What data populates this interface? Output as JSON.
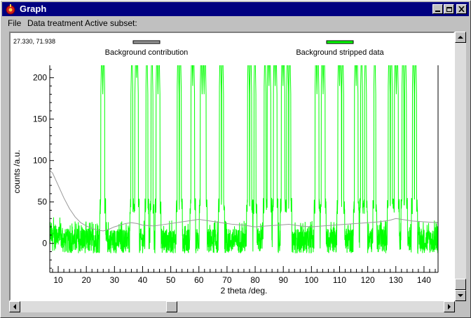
{
  "window": {
    "title": "Graph",
    "title_bar_color": "#000080"
  },
  "menu": {
    "items": [
      "File",
      "Data treatment",
      "Active subset:"
    ]
  },
  "status": {
    "cursor_readout": "27.330, 71.938"
  },
  "colors": {
    "background_series": "#999999",
    "data_series": "#00ff00",
    "axis": "#000000"
  },
  "icons": [
    "app-icon",
    "minimize-icon",
    "maximize-icon",
    "close-icon",
    "arrow-up-icon",
    "arrow-down-icon",
    "arrow-left-icon",
    "arrow-right-icon"
  ],
  "chart_data": {
    "type": "line",
    "xlabel": "2 theta /deg.",
    "ylabel": "counts /a.u.",
    "xlim": [
      7,
      145
    ],
    "ylim": [
      -35,
      215
    ],
    "x_ticks": [
      10,
      20,
      30,
      40,
      50,
      60,
      70,
      80,
      90,
      100,
      110,
      120,
      130,
      140
    ],
    "y_ticks": [
      0,
      50,
      100,
      150,
      200
    ],
    "legend_placement": "top",
    "series": [
      {
        "name": "Background contribution",
        "color": "#999999",
        "x": [
          7,
          8,
          10,
          12,
          14,
          16,
          18,
          20,
          22,
          24,
          26,
          28,
          30,
          32,
          34,
          36,
          38,
          40,
          44,
          48,
          52,
          56,
          60,
          64,
          68,
          72,
          76,
          80,
          84,
          88,
          92,
          96,
          100,
          104,
          108,
          112,
          116,
          120,
          124,
          128,
          130,
          132,
          136,
          140,
          145
        ],
        "values": [
          88,
          85,
          70,
          55,
          42,
          32,
          25,
          21,
          18,
          16,
          15,
          17,
          20,
          22,
          24,
          25,
          24,
          22,
          21,
          23,
          25,
          27,
          29,
          27,
          25,
          23,
          22,
          20,
          21,
          22,
          23,
          21,
          20,
          21,
          22,
          23,
          24,
          25,
          26,
          28,
          30,
          29,
          27,
          26,
          25
        ]
      },
      {
        "name": "Background stripped data",
        "color": "#00ff00",
        "noise_level": [
          -12,
          28
        ],
        "peak_positions": [
          25.5,
          26.2,
          36.2,
          37.6,
          38.1,
          41.5,
          43.3,
          45.1,
          45.8,
          52.6,
          53.4,
          57.5,
          58.1,
          60.8,
          61.5,
          62.2,
          67.6,
          68.4,
          77.6,
          78.4,
          79.9,
          83.5,
          84.6,
          85.2,
          86.8,
          87.4,
          89.6,
          90.2,
          91.5,
          92.3,
          101.6,
          102.3,
          103.8,
          104.5,
          109.7,
          110.3,
          111.1,
          115.6,
          116.2,
          117.8,
          119.2,
          122.5,
          127.6,
          128.4,
          129.8,
          130.5,
          132.5,
          133.4,
          136.2,
          137.0
        ]
      }
    ]
  }
}
